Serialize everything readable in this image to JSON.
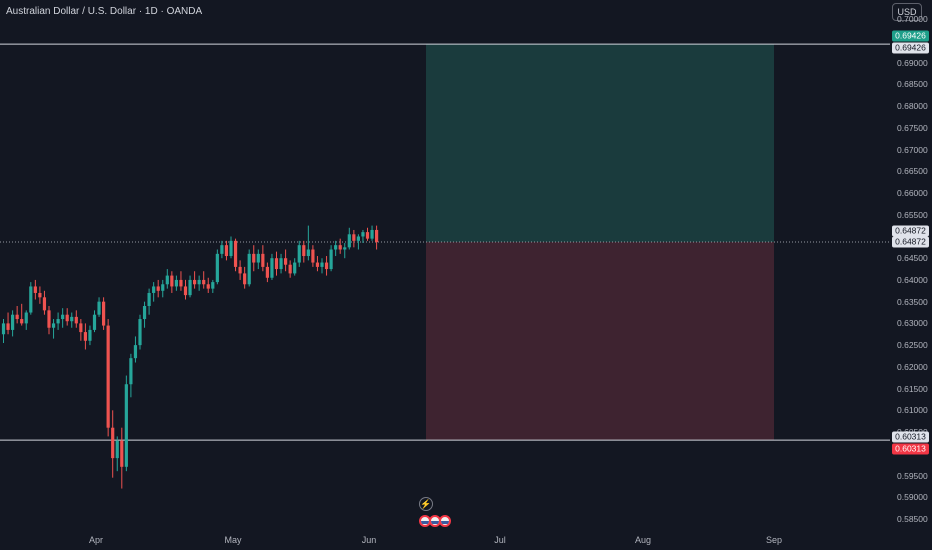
{
  "header": {
    "symbol_title": "Australian Dollar / U.S. Dollar · 1D · OANDA",
    "currency": "USD"
  },
  "price_axis": {
    "ticks": [
      "0.70000",
      "0.69000",
      "0.68500",
      "0.68000",
      "0.67500",
      "0.67000",
      "0.66500",
      "0.66000",
      "0.65500",
      "0.64500",
      "0.64000",
      "0.63500",
      "0.63000",
      "0.62500",
      "0.62000",
      "0.61500",
      "0.61000",
      "0.60500",
      "0.59500",
      "0.59000",
      "0.58500"
    ]
  },
  "price_tags": {
    "target_top": "0.69426",
    "target_bottom": "0.69426",
    "entry_top": "0.64872",
    "entry_bottom": "0.64872",
    "stop_top": "0.60313",
    "stop_bottom": "0.60313"
  },
  "time_axis": {
    "months": [
      "Apr",
      "May",
      "Jun",
      "Jul",
      "Aug",
      "Sep"
    ]
  },
  "colors": {
    "background": "#131722",
    "up_candle": "#26a69a",
    "down_candle": "#ef5350",
    "profit_zone": "#1a3b3d",
    "loss_zone": "#3e2330",
    "level_line": "#d1d4dc"
  },
  "icons": {
    "flash": "lightning-icon",
    "events": "flag-events-icon"
  },
  "chart_data": {
    "type": "candlestick",
    "title": "Australian Dollar / U.S. Dollar · 1D · OANDA",
    "ylim": [
      0.582,
      0.7005
    ],
    "position_tool": {
      "target": 0.69426,
      "entry": 0.64872,
      "stop": 0.60313
    },
    "horizontal_levels": [
      0.69426,
      0.60313
    ],
    "candles": [
      [
        0.6275,
        0.631,
        0.6255,
        0.63
      ],
      [
        0.63,
        0.6325,
        0.6275,
        0.6285
      ],
      [
        0.6285,
        0.633,
        0.627,
        0.632
      ],
      [
        0.632,
        0.634,
        0.63,
        0.631
      ],
      [
        0.631,
        0.6345,
        0.6295,
        0.63
      ],
      [
        0.63,
        0.633,
        0.6285,
        0.6325
      ],
      [
        0.6325,
        0.6395,
        0.632,
        0.6385
      ],
      [
        0.6385,
        0.64,
        0.6355,
        0.637
      ],
      [
        0.637,
        0.6385,
        0.6345,
        0.636
      ],
      [
        0.636,
        0.6375,
        0.632,
        0.633
      ],
      [
        0.633,
        0.634,
        0.6275,
        0.629
      ],
      [
        0.629,
        0.631,
        0.6265,
        0.63
      ],
      [
        0.63,
        0.6325,
        0.6285,
        0.631
      ],
      [
        0.631,
        0.6335,
        0.629,
        0.632
      ],
      [
        0.632,
        0.6335,
        0.6295,
        0.6305
      ],
      [
        0.6305,
        0.6325,
        0.629,
        0.6315
      ],
      [
        0.6315,
        0.633,
        0.629,
        0.63
      ],
      [
        0.63,
        0.631,
        0.626,
        0.628
      ],
      [
        0.628,
        0.63,
        0.624,
        0.626
      ],
      [
        0.626,
        0.6295,
        0.625,
        0.6285
      ],
      [
        0.6285,
        0.633,
        0.628,
        0.632
      ],
      [
        0.632,
        0.636,
        0.6315,
        0.635
      ],
      [
        0.635,
        0.636,
        0.6285,
        0.6295
      ],
      [
        0.6295,
        0.631,
        0.604,
        0.606
      ],
      [
        0.606,
        0.61,
        0.5945,
        0.599
      ],
      [
        0.599,
        0.604,
        0.596,
        0.603
      ],
      [
        0.603,
        0.606,
        0.592,
        0.597
      ],
      [
        0.597,
        0.618,
        0.596,
        0.616
      ],
      [
        0.616,
        0.623,
        0.613,
        0.622
      ],
      [
        0.622,
        0.627,
        0.621,
        0.625
      ],
      [
        0.625,
        0.632,
        0.624,
        0.631
      ],
      [
        0.631,
        0.635,
        0.629,
        0.634
      ],
      [
        0.634,
        0.638,
        0.632,
        0.637
      ],
      [
        0.637,
        0.6395,
        0.635,
        0.6385
      ],
      [
        0.6385,
        0.64,
        0.636,
        0.6375
      ],
      [
        0.6375,
        0.64,
        0.636,
        0.639
      ],
      [
        0.639,
        0.6425,
        0.638,
        0.641
      ],
      [
        0.641,
        0.642,
        0.637,
        0.6385
      ],
      [
        0.6385,
        0.641,
        0.6375,
        0.64
      ],
      [
        0.64,
        0.642,
        0.6375,
        0.6385
      ],
      [
        0.6385,
        0.64,
        0.6355,
        0.6365
      ],
      [
        0.6365,
        0.641,
        0.636,
        0.64
      ],
      [
        0.64,
        0.642,
        0.638,
        0.639
      ],
      [
        0.639,
        0.641,
        0.6375,
        0.64
      ],
      [
        0.64,
        0.642,
        0.638,
        0.639
      ],
      [
        0.639,
        0.6405,
        0.637,
        0.638
      ],
      [
        0.638,
        0.64,
        0.637,
        0.6395
      ],
      [
        0.6395,
        0.647,
        0.639,
        0.646
      ],
      [
        0.646,
        0.649,
        0.645,
        0.648
      ],
      [
        0.648,
        0.649,
        0.6445,
        0.6455
      ],
      [
        0.6455,
        0.65,
        0.645,
        0.649
      ],
      [
        0.649,
        0.6495,
        0.642,
        0.643
      ],
      [
        0.643,
        0.6445,
        0.64,
        0.6415
      ],
      [
        0.6415,
        0.643,
        0.638,
        0.639
      ],
      [
        0.639,
        0.647,
        0.6385,
        0.646
      ],
      [
        0.646,
        0.648,
        0.642,
        0.644
      ],
      [
        0.644,
        0.647,
        0.6425,
        0.646
      ],
      [
        0.646,
        0.648,
        0.642,
        0.643
      ],
      [
        0.643,
        0.644,
        0.6395,
        0.6405
      ],
      [
        0.6405,
        0.646,
        0.64,
        0.645
      ],
      [
        0.645,
        0.6465,
        0.641,
        0.6425
      ],
      [
        0.6425,
        0.646,
        0.6415,
        0.645
      ],
      [
        0.645,
        0.647,
        0.642,
        0.6435
      ],
      [
        0.6435,
        0.6445,
        0.6405,
        0.6415
      ],
      [
        0.6415,
        0.645,
        0.641,
        0.644
      ],
      [
        0.644,
        0.649,
        0.643,
        0.648
      ],
      [
        0.648,
        0.649,
        0.644,
        0.6455
      ],
      [
        0.6455,
        0.6525,
        0.6445,
        0.647
      ],
      [
        0.647,
        0.648,
        0.643,
        0.644
      ],
      [
        0.644,
        0.6455,
        0.642,
        0.643
      ],
      [
        0.643,
        0.645,
        0.6415,
        0.644
      ],
      [
        0.644,
        0.6455,
        0.641,
        0.6425
      ],
      [
        0.6425,
        0.648,
        0.642,
        0.647
      ],
      [
        0.647,
        0.649,
        0.6455,
        0.648
      ],
      [
        0.648,
        0.6495,
        0.646,
        0.647
      ],
      [
        0.647,
        0.6485,
        0.645,
        0.6475
      ],
      [
        0.6475,
        0.652,
        0.647,
        0.6505
      ],
      [
        0.6505,
        0.6515,
        0.6475,
        0.649
      ],
      [
        0.649,
        0.6505,
        0.647,
        0.65
      ],
      [
        0.65,
        0.6515,
        0.6485,
        0.651
      ],
      [
        0.651,
        0.652,
        0.649,
        0.6495
      ],
      [
        0.6495,
        0.6525,
        0.649,
        0.6515
      ],
      [
        0.6515,
        0.6525,
        0.647,
        0.6487
      ]
    ]
  }
}
